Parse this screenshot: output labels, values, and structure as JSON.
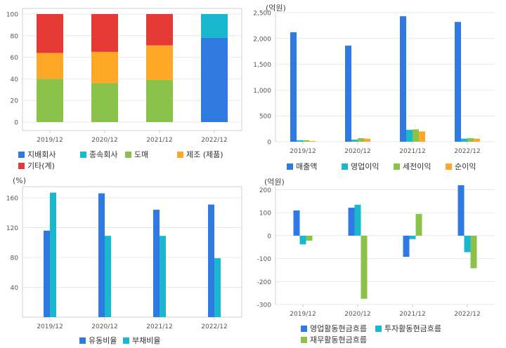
{
  "colors": {
    "blue": "#2f7ae0",
    "cyan": "#1ab8cf",
    "green": "#8bc34a",
    "orange": "#ffa726",
    "red": "#e53935",
    "grid": "#e8e8e8",
    "frame": "#cfcfcf"
  },
  "chart_data": [
    {
      "type": "bar",
      "stacked": true,
      "categories": [
        "2019/12",
        "2020/12",
        "2021/12",
        "2022/12"
      ],
      "ylim": [
        0,
        100
      ],
      "yticks": [
        0,
        20,
        40,
        60,
        80,
        100
      ],
      "series": [
        {
          "name": "지배회사",
          "values": [
            0,
            0,
            0,
            78
          ],
          "color": "blue"
        },
        {
          "name": "종속회사",
          "values": [
            0,
            0,
            0,
            22
          ],
          "color": "cyan"
        },
        {
          "name": "도매",
          "values": [
            40,
            36,
            39,
            0
          ],
          "color": "green"
        },
        {
          "name": "제조 (제품)",
          "values": [
            24,
            29,
            32,
            0
          ],
          "color": "orange"
        },
        {
          "name": "기타(계)",
          "values": [
            36,
            35,
            29,
            0
          ],
          "color": "red"
        }
      ],
      "unit": "",
      "grid": true,
      "legend": "bottom"
    },
    {
      "type": "bar",
      "categories": [
        "2019/12",
        "2020/12",
        "2021/12",
        "2022/12"
      ],
      "ylim": [
        0,
        2500
      ],
      "yticks": [
        0,
        500,
        1000,
        1500,
        2000,
        2500
      ],
      "ytick_labels": [
        "0",
        "500",
        "1,000",
        "1,500",
        "2,000",
        "2,500"
      ],
      "series": [
        {
          "name": "매출액",
          "values": [
            2120,
            1860,
            2430,
            2320
          ],
          "color": "blue"
        },
        {
          "name": "영업이익",
          "values": [
            30,
            40,
            230,
            60
          ],
          "color": "cyan"
        },
        {
          "name": "세전이익",
          "values": [
            30,
            70,
            240,
            70
          ],
          "color": "green"
        },
        {
          "name": "순이익",
          "values": [
            15,
            60,
            200,
            60
          ],
          "color": "orange"
        }
      ],
      "unit": "(억원)",
      "grid": true,
      "legend": "bottom"
    },
    {
      "type": "bar",
      "categories": [
        "2019/12",
        "2020/12",
        "2021/12",
        "2022/12"
      ],
      "ylim": [
        0,
        175
      ],
      "yticks": [
        40,
        80,
        120,
        160
      ],
      "series": [
        {
          "name": "유동비율",
          "values": [
            116,
            166,
            144,
            151
          ],
          "color": "blue"
        },
        {
          "name": "부채비율",
          "values": [
            167,
            109,
            109,
            79
          ],
          "color": "cyan"
        }
      ],
      "unit": "(%)",
      "grid": true,
      "legend": "bottom"
    },
    {
      "type": "bar",
      "categories": [
        "2019/12",
        "2020/12",
        "2021/12",
        "2022/12"
      ],
      "ylim": [
        -300,
        220
      ],
      "yticks": [
        -300,
        -200,
        -100,
        0,
        100,
        200
      ],
      "series": [
        {
          "name": "영업활동현금흐름",
          "values": [
            110,
            122,
            -92,
            220
          ],
          "color": "blue"
        },
        {
          "name": "투자활동현금흐름",
          "values": [
            -38,
            135,
            -15,
            -72
          ],
          "color": "cyan"
        },
        {
          "name": "재무활동현금흐름",
          "values": [
            -22,
            -275,
            95,
            -142
          ],
          "color": "green"
        }
      ],
      "unit": "(억원)",
      "grid": true,
      "legend": "bottom"
    }
  ]
}
